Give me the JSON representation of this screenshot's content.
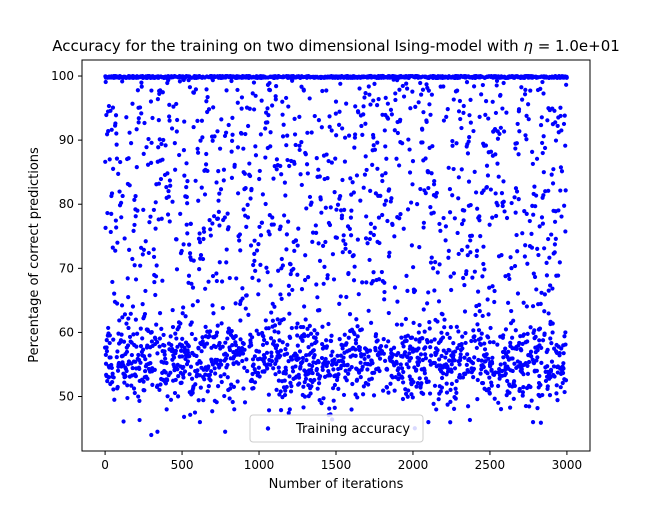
{
  "chart_data": {
    "type": "scatter",
    "title": "Accuracy for the training on two dimensional Ising-model with η = 1.0e+01",
    "title_plain": "Accuracy for the training on two dimensional Ising-model with ",
    "title_symbol": "η",
    "title_value": " = 1.0e+01",
    "xlabel": "Number of iterations",
    "ylabel": "Percentage of correct predictions",
    "xlim": [
      -150,
      3150
    ],
    "ylim": [
      41.5,
      102.5
    ],
    "xticks": [
      0,
      500,
      1000,
      1500,
      2000,
      2500,
      3000
    ],
    "yticks": [
      50,
      60,
      70,
      80,
      90,
      100
    ],
    "xtick_labels": [
      "0",
      "500",
      "1000",
      "1500",
      "2000",
      "2500",
      "3000"
    ],
    "ytick_labels": [
      "50",
      "60",
      "70",
      "80",
      "90",
      "100"
    ],
    "grid": false,
    "legend_position": "lower-center",
    "series": [
      {
        "name": "Training accuracy",
        "color": "#0000ff",
        "marker": "circle",
        "n_points": 3000,
        "x_range": [
          0,
          2999
        ],
        "distribution": "Points spread across every iteration from 0 to 3000; a dense band at 100 along the top, a dense cluster between about 46 and 62, and scattered points through 62–99; minimum about 44.",
        "sample_points": [
          [
            5,
            56.5
          ],
          [
            10,
            99.8
          ],
          [
            20,
            91.4
          ],
          [
            25,
            53
          ],
          [
            30,
            87
          ],
          [
            40,
            78.5
          ],
          [
            60,
            49.5
          ],
          [
            80,
            74
          ],
          [
            100,
            55
          ],
          [
            150,
            65.5
          ],
          [
            200,
            62
          ],
          [
            250,
            51
          ],
          [
            300,
            44
          ],
          [
            340,
            44.5
          ],
          [
            400,
            48
          ],
          [
            500,
            58
          ],
          [
            600,
            93
          ],
          [
            700,
            55
          ],
          [
            780,
            44.5
          ],
          [
            900,
            85
          ],
          [
            1000,
            57
          ],
          [
            1100,
            64
          ],
          [
            1200,
            48
          ],
          [
            1300,
            88
          ],
          [
            1500,
            96
          ],
          [
            1600,
            79
          ],
          [
            1800,
            84.5
          ],
          [
            2000,
            57
          ],
          [
            2100,
            46
          ],
          [
            2300,
            53
          ],
          [
            2500,
            55
          ],
          [
            2700,
            54
          ],
          [
            2780,
            46
          ],
          [
            2850,
            85
          ],
          [
            2990,
            60
          ]
        ]
      }
    ]
  }
}
